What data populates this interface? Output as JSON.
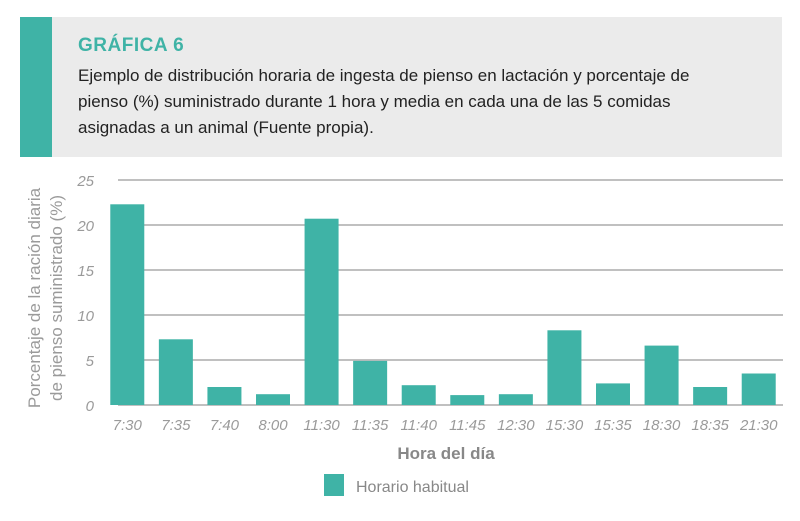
{
  "header": {
    "label": "GRÁFICA 6",
    "caption": "Ejemplo de distribución horaria de ingesta de pienso en lactación y porcentaje de pienso (%) suministrado durante 1 hora y media en cada una de las 5 comidas asignadas a un animal (Fuente propia)."
  },
  "colors": {
    "accent": "#3fb3a6",
    "bar": "#3fb3a6",
    "panel": "#ebebeb",
    "grid": "#9a9a9a"
  },
  "chart_data": {
    "type": "bar",
    "categories": [
      "7:30",
      "7:35",
      "7:40",
      "8:00",
      "11:30",
      "11:35",
      "11:40",
      "11:45",
      "12:30",
      "15:30",
      "15:35",
      "18:30",
      "18:35",
      "21:30"
    ],
    "series": [
      {
        "name": "Horario habitual",
        "values": [
          22.3,
          7.3,
          2.0,
          1.2,
          20.7,
          4.9,
          2.2,
          1.1,
          1.2,
          8.3,
          2.4,
          6.6,
          2.0,
          3.5
        ]
      }
    ],
    "xlabel": "Hora del día",
    "ylabel": [
      "Porcentaje de la ración diaria",
      "de pienso suministrado (%)"
    ],
    "ylim": [
      0,
      25
    ],
    "yticks": [
      0,
      5,
      10,
      15,
      20,
      25
    ],
    "grid": true,
    "legend": "bottom-center"
  }
}
